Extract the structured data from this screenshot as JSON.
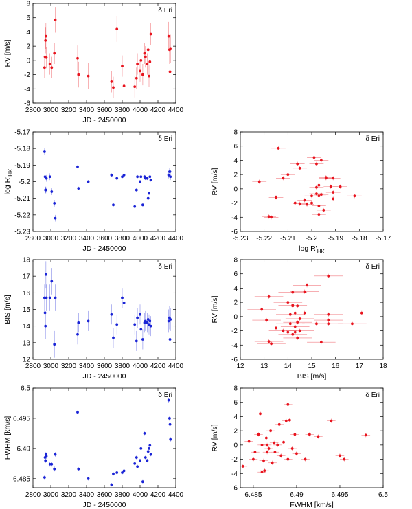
{
  "chart_data": [
    {
      "id": "p1",
      "type": "scatter",
      "color": "#e8141e",
      "title": "δ Eri",
      "xlabel": "JD - 2450000",
      "ylabel": "RV [m/s]",
      "ylabel_sub": "",
      "xlim": [
        2800,
        4400
      ],
      "ylim": [
        -6,
        8
      ],
      "xticks": [
        2800,
        3000,
        3200,
        3400,
        3600,
        3800,
        4000,
        4200,
        4400
      ],
      "xtick_labels": [
        "2800",
        "3000",
        "3200",
        "3400",
        "3600",
        "3800",
        "4000",
        "4200",
        "4400"
      ],
      "yticks": [
        -6,
        -4,
        -2,
        0,
        2,
        4,
        6,
        8
      ],
      "ytick_labels": [
        "-6",
        "-4",
        "-2",
        "0",
        "2",
        "4",
        "6",
        "8"
      ],
      "x": [
        2930,
        2935,
        2940,
        2945,
        2950,
        2990,
        3010,
        3040,
        3050,
        3300,
        3310,
        3420,
        3680,
        3700,
        3740,
        3800,
        3820,
        3940,
        3960,
        3970,
        4000,
        4010,
        4030,
        4050,
        4060,
        4080,
        4090,
        4100,
        4110,
        4120,
        4320,
        4330,
        4335,
        4340
      ],
      "y": [
        -1.0,
        0.5,
        2.8,
        3.4,
        0.4,
        -0.5,
        -1.0,
        1.0,
        5.7,
        0.3,
        -2.0,
        -2.2,
        -3.0,
        -3.8,
        4.4,
        -0.8,
        -3.6,
        -3.7,
        -2.5,
        -0.5,
        -1.5,
        0.0,
        -2.0,
        1.0,
        0.5,
        -0.5,
        1.5,
        -2.2,
        -0.2,
        3.7,
        3.4,
        1.5,
        -1.6,
        1.6
      ],
      "xerr": [],
      "yerr": [
        1.5,
        1.5,
        1.8,
        1.8,
        1.5,
        1.5,
        1.5,
        1.5,
        1.8,
        1.8,
        1.8,
        1.8,
        1.5,
        1.5,
        1.8,
        1.5,
        1.8,
        1.5,
        1.5,
        1.5,
        1.5,
        1.5,
        1.5,
        1.5,
        1.5,
        1.5,
        1.5,
        1.5,
        1.5,
        1.5,
        2.0,
        2.0,
        2.0,
        2.0
      ]
    },
    {
      "id": "p2",
      "type": "scatter",
      "color": "#1a24d6",
      "title": "δ Eri",
      "xlabel": "JD - 2450000",
      "ylabel": "log R'",
      "ylabel_sub": "HK",
      "xlim": [
        2800,
        4400
      ],
      "ylim": [
        -5.23,
        -5.17
      ],
      "xticks": [
        2800,
        3000,
        3200,
        3400,
        3600,
        3800,
        4000,
        4200,
        4400
      ],
      "xtick_labels": [
        "2800",
        "3000",
        "3200",
        "3400",
        "3600",
        "3800",
        "4000",
        "4200",
        "4400"
      ],
      "yticks": [
        -5.23,
        -5.22,
        -5.21,
        -5.2,
        -5.19,
        -5.18,
        -5.17
      ],
      "ytick_labels": [
        "-5.23",
        "-5.22",
        "-5.21",
        "-5.2",
        "-5.19",
        "-5.18",
        "-5.17"
      ],
      "x": [
        2930,
        2935,
        2940,
        2945,
        2950,
        2990,
        3010,
        3040,
        3050,
        3300,
        3310,
        3420,
        3680,
        3700,
        3740,
        3800,
        3820,
        3940,
        3960,
        3970,
        4000,
        4010,
        4030,
        4050,
        4060,
        4080,
        4090,
        4100,
        4110,
        4120,
        4320,
        4330,
        4335,
        4340
      ],
      "y": [
        -5.182,
        -5.197,
        -5.205,
        -5.205,
        -5.198,
        -5.197,
        -5.206,
        -5.213,
        -5.222,
        -5.191,
        -5.204,
        -5.2,
        -5.196,
        -5.214,
        -5.198,
        -5.197,
        -5.196,
        -5.215,
        -5.205,
        -5.197,
        -5.2,
        -5.197,
        -5.214,
        -5.197,
        -5.198,
        -5.198,
        -5.21,
        -5.207,
        -5.197,
        -5.199,
        -5.196,
        -5.194,
        -5.194,
        -5.197
      ],
      "xerr": [],
      "yerr": [
        0.002,
        0.002,
        0.002,
        0.002,
        0.002,
        0.002,
        0.002,
        0.002,
        0.002,
        0.001,
        0.001,
        0.001,
        0.001,
        0.001,
        0.001,
        0.001,
        0.001,
        0.001,
        0.001,
        0.001,
        0.001,
        0.001,
        0.001,
        0.001,
        0.001,
        0.001,
        0.001,
        0.001,
        0.001,
        0.001,
        0.002,
        0.002,
        0.002,
        0.002
      ]
    },
    {
      "id": "p3",
      "type": "scatter",
      "color": "#e8141e",
      "title": "δ Eri",
      "xlabel": "log R'",
      "xlabel_sub": "HK",
      "ylabel": "RV [m/s]",
      "ylabel_sub": "",
      "xlim": [
        -5.23,
        -5.17
      ],
      "ylim": [
        -6,
        8
      ],
      "xticks": [
        -5.23,
        -5.22,
        -5.21,
        -5.2,
        -5.19,
        -5.18,
        -5.17
      ],
      "xtick_labels": [
        "-5.23",
        "-5.22",
        "-5.21",
        "-5.2",
        "-5.19",
        "-5.18",
        "-5.17"
      ],
      "yticks": [
        -6,
        -4,
        -2,
        0,
        2,
        4,
        6,
        8
      ],
      "ytick_labels": [
        "-6",
        "-4",
        "-2",
        "0",
        "2",
        "4",
        "6",
        "8"
      ],
      "x": [
        -5.214,
        -5.222,
        -5.218,
        -5.217,
        -5.215,
        -5.212,
        -5.206,
        -5.205,
        -5.205,
        -5.203,
        -5.202,
        -5.2,
        -5.2,
        -5.199,
        -5.198,
        -5.198,
        -5.198,
        -5.197,
        -5.197,
        -5.197,
        -5.197,
        -5.196,
        -5.196,
        -5.195,
        -5.194,
        -5.194,
        -5.192,
        -5.191,
        -5.191,
        -5.191,
        -5.188,
        -5.182,
        -5.207,
        -5.21
      ],
      "y": [
        5.7,
        1.0,
        -3.9,
        -4.0,
        -1.2,
        1.5,
        3.5,
        2.9,
        -2.1,
        -1.6,
        -2.2,
        -1.0,
        -2.0,
        4.4,
        0.2,
        3.5,
        -0.7,
        -1.0,
        0.5,
        -2.4,
        -3.6,
        4.0,
        -0.8,
        -3.0,
        1.5,
        1.6,
        0.3,
        1.5,
        -1.4,
        -0.5,
        0.3,
        -1.0,
        -2.0,
        2.0
      ],
      "xerr": [
        0.003,
        0.003,
        0.003,
        0.003,
        0.003,
        0.003,
        0.003,
        0.003,
        0.003,
        0.003,
        0.003,
        0.003,
        0.003,
        0.003,
        0.003,
        0.003,
        0.003,
        0.003,
        0.003,
        0.003,
        0.003,
        0.003,
        0.003,
        0.003,
        0.003,
        0.003,
        0.003,
        0.003,
        0.003,
        0.003,
        0.003,
        0.003,
        0.003,
        0.003
      ],
      "yerr": [
        0.3,
        0.3,
        0.3,
        0.3,
        0.3,
        0.3,
        0.3,
        0.3,
        0.3,
        0.3,
        0.3,
        0.3,
        0.3,
        0.3,
        0.3,
        0.3,
        0.3,
        0.3,
        0.3,
        0.3,
        0.3,
        0.3,
        0.3,
        0.3,
        0.3,
        0.3,
        0.3,
        0.3,
        0.3,
        0.3,
        0.3,
        0.3,
        0.3,
        0.3
      ]
    },
    {
      "id": "p4",
      "type": "scatter",
      "color": "#1a24d6",
      "title": "δ Eri",
      "xlabel": "JD - 2450000",
      "ylabel": "BIS [m/s]",
      "ylabel_sub": "",
      "xlim": [
        2800,
        4400
      ],
      "ylim": [
        12,
        18
      ],
      "xticks": [
        2800,
        3000,
        3200,
        3400,
        3600,
        3800,
        4000,
        4200,
        4400
      ],
      "xtick_labels": [
        "2800",
        "3000",
        "3200",
        "3400",
        "3600",
        "3800",
        "4000",
        "4200",
        "4400"
      ],
      "yticks": [
        12,
        13,
        14,
        15,
        16,
        17,
        18
      ],
      "ytick_labels": [
        "12",
        "13",
        "14",
        "15",
        "16",
        "17",
        "18"
      ],
      "x": [
        2930,
        2935,
        2940,
        2945,
        2950,
        2990,
        3010,
        3040,
        3050,
        3300,
        3310,
        3420,
        3680,
        3700,
        3740,
        3800,
        3820,
        3940,
        3960,
        3970,
        4000,
        4010,
        4030,
        4050,
        4060,
        4080,
        4090,
        4100,
        4110,
        4120,
        4320,
        4330,
        4335,
        4340
      ],
      "y": [
        15.7,
        14.8,
        14.0,
        17.1,
        15.7,
        15.7,
        16.7,
        12.9,
        15.7,
        13.5,
        14.2,
        14.3,
        14.7,
        13.3,
        14.1,
        15.7,
        15.4,
        14.1,
        13.1,
        14.5,
        14.7,
        13.8,
        13.2,
        14.2,
        14.3,
        14.2,
        14.4,
        14.1,
        14.3,
        14.0,
        14.3,
        14.5,
        13.2,
        14.4
      ],
      "xerr": [],
      "yerr": [
        0.8,
        0.8,
        0.8,
        0.8,
        0.8,
        0.8,
        0.8,
        0.8,
        0.8,
        0.6,
        0.6,
        0.6,
        0.6,
        0.6,
        0.6,
        0.6,
        0.6,
        0.6,
        0.6,
        0.6,
        0.6,
        0.6,
        0.6,
        0.6,
        0.6,
        0.6,
        0.6,
        0.6,
        0.6,
        0.6,
        0.7,
        0.7,
        0.7,
        0.7
      ]
    },
    {
      "id": "p5",
      "type": "scatter",
      "color": "#e8141e",
      "title": "δ Eri",
      "xlabel": "BIS [m/s]",
      "xlabel_sub": "",
      "ylabel": "RV [m/s]",
      "ylabel_sub": "",
      "xlim": [
        12,
        18
      ],
      "ylim": [
        -6,
        8
      ],
      "xticks": [
        12,
        13,
        14,
        15,
        16,
        17,
        18
      ],
      "xtick_labels": [
        "12",
        "13",
        "14",
        "15",
        "16",
        "17",
        "18"
      ],
      "yticks": [
        -6,
        -4,
        -2,
        0,
        2,
        4,
        6,
        8
      ],
      "ytick_labels": [
        "-6",
        "-4",
        "-2",
        "0",
        "2",
        "4",
        "6",
        "8"
      ],
      "x": [
        15.7,
        12.9,
        13.1,
        13.2,
        13.3,
        13.5,
        13.8,
        14.0,
        14.0,
        14.1,
        14.1,
        14.2,
        14.2,
        14.2,
        14.3,
        14.3,
        14.3,
        14.4,
        14.4,
        14.5,
        14.5,
        14.7,
        14.7,
        15.2,
        15.4,
        15.7,
        15.7,
        15.7,
        16.7,
        17.1,
        14.8,
        14.2,
        14.4,
        13.2
      ],
      "y": [
        5.7,
        1.0,
        -0.5,
        -3.5,
        -3.8,
        -1.6,
        -2.0,
        2.0,
        -2.2,
        0.3,
        -1.0,
        1.6,
        1.5,
        -2.5,
        -2.2,
        -1.4,
        0.5,
        1.5,
        -0.8,
        -2.0,
        -0.3,
        3.5,
        0.5,
        -1.0,
        -3.6,
        -0.5,
        -1.0,
        0.3,
        -1.0,
        0.5,
        4.4,
        3.4,
        -3.0,
        2.8
      ],
      "xerr": [
        0.6,
        0.6,
        0.6,
        0.6,
        0.6,
        0.6,
        0.6,
        0.6,
        0.6,
        0.6,
        0.6,
        0.6,
        0.6,
        0.6,
        0.6,
        0.6,
        0.6,
        0.6,
        0.6,
        0.6,
        0.6,
        0.6,
        0.6,
        0.6,
        0.6,
        0.6,
        0.6,
        0.6,
        0.6,
        0.6,
        0.6,
        0.6,
        0.6,
        0.6
      ],
      "yerr": [
        0.3,
        0.3,
        0.3,
        0.3,
        0.3,
        0.3,
        0.3,
        0.3,
        0.3,
        0.3,
        0.3,
        0.3,
        0.3,
        0.3,
        0.3,
        0.3,
        0.3,
        0.3,
        0.3,
        0.3,
        0.3,
        0.3,
        0.3,
        0.3,
        0.3,
        0.3,
        0.3,
        0.3,
        0.3,
        0.3,
        0.3,
        0.3,
        0.3,
        0.3
      ]
    },
    {
      "id": "p6",
      "type": "scatter",
      "color": "#1a24d6",
      "title": "δ Eri",
      "xlabel": "JD - 2450000",
      "ylabel": "FWHM [km/s]",
      "ylabel_sub": "",
      "xlim": [
        2800,
        4400
      ],
      "ylim": [
        6.4835,
        6.5
      ],
      "xticks": [
        2800,
        3000,
        3200,
        3400,
        3600,
        3800,
        4000,
        4200,
        4400
      ],
      "xtick_labels": [
        "2800",
        "3000",
        "3200",
        "3400",
        "3600",
        "3800",
        "4000",
        "4200",
        "4400"
      ],
      "yticks": [
        6.485,
        6.49,
        6.495,
        6.5
      ],
      "ytick_labels": [
        "6.485",
        "6.49",
        "6.495",
        "6.5"
      ],
      "x": [
        2930,
        2935,
        2940,
        2945,
        2950,
        2990,
        3010,
        3040,
        3050,
        3300,
        3310,
        3420,
        3680,
        3700,
        3740,
        3800,
        3820,
        3940,
        3960,
        3970,
        4000,
        4010,
        4030,
        4050,
        4060,
        4080,
        4090,
        4100,
        4110,
        4120,
        4320,
        4330,
        4335,
        4340
      ],
      "y": [
        6.4852,
        6.4885,
        6.488,
        6.489,
        6.4887,
        6.4874,
        6.4874,
        6.4866,
        6.489,
        6.496,
        6.4866,
        6.485,
        6.484,
        6.4858,
        6.486,
        6.486,
        6.4863,
        6.4875,
        6.4885,
        6.487,
        6.488,
        6.49,
        6.4845,
        6.4925,
        6.4885,
        6.488,
        6.4895,
        6.49,
        6.4905,
        6.489,
        6.498,
        6.495,
        6.494,
        6.4915
      ],
      "xerr": [],
      "yerr": [
        0.0004,
        0.0004,
        0.0004,
        0.0004,
        0.0004,
        0.0004,
        0.0004,
        0.0004,
        0.0004,
        0.0003,
        0.0003,
        0.0003,
        0.0003,
        0.0003,
        0.0003,
        0.0003,
        0.0003,
        0.0003,
        0.0003,
        0.0003,
        0.0003,
        0.0003,
        0.0003,
        0.0003,
        0.0003,
        0.0003,
        0.0003,
        0.0003,
        0.0003,
        0.0003,
        0.0004,
        0.0004,
        0.0004,
        0.0004
      ]
    },
    {
      "id": "p7",
      "type": "scatter",
      "color": "#e8141e",
      "title": "δ Eri",
      "xlabel": "FWHM [km/s]",
      "xlabel_sub": "",
      "ylabel": "RV [m/s]",
      "ylabel_sub": "",
      "xlim": [
        6.4835,
        6.5
      ],
      "ylim": [
        -6,
        8
      ],
      "xticks": [
        6.485,
        6.49,
        6.495,
        6.5
      ],
      "xtick_labels": [
        "6.485",
        "6.49",
        "6.495",
        "6.5"
      ],
      "yticks": [
        -6,
        -4,
        -2,
        0,
        2,
        4,
        6,
        8
      ],
      "ytick_labels": [
        "-6",
        "-4",
        "-2",
        "0",
        "2",
        "4",
        "6",
        "8"
      ],
      "x": [
        6.4838,
        6.4845,
        6.485,
        6.4852,
        6.4856,
        6.4858,
        6.486,
        6.486,
        6.4862,
        6.4863,
        6.4865,
        6.4866,
        6.4866,
        6.4868,
        6.487,
        6.4872,
        6.4874,
        6.4875,
        6.4878,
        6.488,
        6.4882,
        6.4885,
        6.4888,
        6.489,
        6.489,
        6.4892,
        6.4895,
        6.4898,
        6.49,
        6.491,
        6.4915,
        6.4925,
        6.494,
        6.495,
        6.4955,
        6.498
      ],
      "y": [
        -3.0,
        0.5,
        -2.0,
        -1.0,
        1.5,
        4.4,
        -3.8,
        0.0,
        -2.2,
        -3.6,
        1.0,
        0.0,
        -1.0,
        -0.5,
        2.0,
        -2.5,
        0.3,
        -1.0,
        0.0,
        2.9,
        -1.5,
        0.4,
        3.4,
        5.7,
        -2.0,
        3.5,
        -0.5,
        1.5,
        -1.2,
        -2.0,
        1.5,
        1.2,
        3.4,
        -1.5,
        -2.0,
        1.4
      ],
      "xerr": [
        0.0005,
        0.0005,
        0.0005,
        0.0005,
        0.0005,
        0.0005,
        0.0005,
        0.0005,
        0.0005,
        0.0005,
        0.0005,
        0.0005,
        0.0005,
        0.0005,
        0.0005,
        0.0005,
        0.0005,
        0.0005,
        0.0005,
        0.0005,
        0.0005,
        0.0005,
        0.0005,
        0.0005,
        0.0005,
        0.0005,
        0.0005,
        0.0005,
        0.0005,
        0.0005,
        0.0005,
        0.0005,
        0.0005,
        0.0005,
        0.0005,
        0.0005
      ],
      "yerr": [
        0.3,
        0.3,
        0.3,
        0.3,
        0.3,
        0.3,
        0.3,
        0.3,
        0.3,
        0.3,
        0.3,
        0.3,
        0.3,
        0.3,
        0.3,
        0.3,
        0.3,
        0.3,
        0.3,
        0.3,
        0.3,
        0.3,
        0.3,
        0.3,
        0.3,
        0.3,
        0.3,
        0.3,
        0.3,
        0.3,
        0.3,
        0.3,
        0.3,
        0.3,
        0.3,
        0.3
      ]
    }
  ]
}
